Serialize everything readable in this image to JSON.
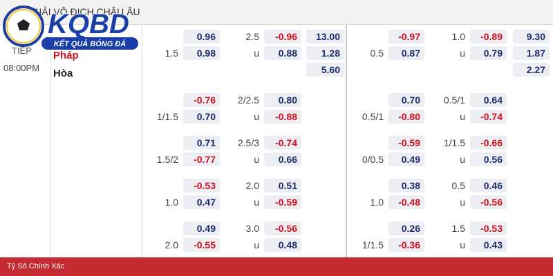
{
  "header": {
    "title": "*GIẢI VÔ ĐỊCH CHÂU ÂU"
  },
  "logo": {
    "title": "KQBD",
    "subtitle": "KẾT QUẢ BÓNG ĐÁ"
  },
  "match": {
    "status": "TIẾP",
    "time": "08:00PM",
    "teams": [
      "Pháp",
      "Hòa"
    ]
  },
  "groups": [
    {
      "left": [
        [
          null,
          "0.96",
          "2.5",
          "-0.96",
          "13.00"
        ],
        [
          "1.5",
          "0.98",
          "u",
          "0.88",
          "1.28"
        ],
        [
          null,
          null,
          null,
          null,
          "5.60"
        ]
      ],
      "right": [
        [
          null,
          "-0.97",
          "1.0",
          "-0.89",
          "9.30"
        ],
        [
          "0.5",
          "0.87",
          "u",
          "0.79",
          "1.87"
        ],
        [
          null,
          null,
          null,
          null,
          "2.27"
        ]
      ]
    },
    {
      "left": [
        [
          null,
          "-0.76",
          "2/2.5",
          "0.80",
          null
        ],
        [
          "1/1.5",
          "0.70",
          "u",
          "-0.88",
          null
        ]
      ],
      "right": [
        [
          null,
          "0.70",
          "0.5/1",
          "0.64",
          null
        ],
        [
          "0.5/1",
          "-0.80",
          "u",
          "-0.74",
          null
        ]
      ]
    },
    {
      "left": [
        [
          null,
          "0.71",
          "2.5/3",
          "-0.74",
          null
        ],
        [
          "1.5/2",
          "-0.77",
          "u",
          "0.66",
          null
        ]
      ],
      "right": [
        [
          null,
          "-0.59",
          "1/1.5",
          "-0.66",
          null
        ],
        [
          "0/0.5",
          "0.49",
          "u",
          "0.56",
          null
        ]
      ]
    },
    {
      "left": [
        [
          null,
          "-0.53",
          "2.0",
          "0.51",
          null
        ],
        [
          "1.0",
          "0.47",
          "u",
          "-0.59",
          null
        ]
      ],
      "right": [
        [
          null,
          "0.38",
          "0.5",
          "0.46",
          null
        ],
        [
          "1.0",
          "-0.48",
          "u",
          "-0.56",
          null
        ]
      ]
    },
    {
      "left": [
        [
          null,
          "0.49",
          "3.0",
          "-0.56",
          null
        ],
        [
          "2.0",
          "-0.55",
          "u",
          "0.48",
          null
        ]
      ],
      "right": [
        [
          null,
          "0.26",
          "1.5",
          "-0.53",
          null
        ],
        [
          "1/1.5",
          "-0.36",
          "u",
          "0.43",
          null
        ]
      ]
    }
  ],
  "footer": {
    "label": "Tỷ Số Chính Xác"
  }
}
